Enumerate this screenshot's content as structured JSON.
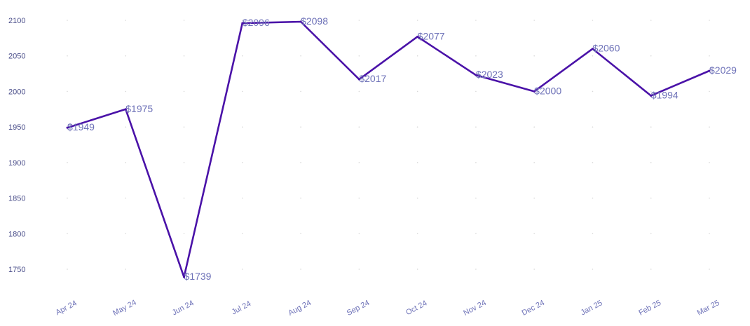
{
  "chart_data": {
    "type": "line",
    "categories": [
      "Apr 24",
      "May 24",
      "Jun 24",
      "Jul 24",
      "Aug 24",
      "Sep 24",
      "Oct 24",
      "Nov 24",
      "Dec 24",
      "Jan 25",
      "Feb 25",
      "Mar 25"
    ],
    "values": [
      1949,
      1975,
      1739,
      2096,
      2098,
      2017,
      2077,
      2023,
      2000,
      2060,
      1994,
      2029
    ],
    "data_labels": [
      "$1949",
      "$1975",
      "$1739",
      "$2096",
      "$2098",
      "$2017",
      "$2077",
      "$2023",
      "$2000",
      "$2060",
      "$1994",
      "$2029"
    ],
    "yticks": [
      1750,
      1800,
      1850,
      1900,
      1950,
      2000,
      2050,
      2100
    ],
    "ylim": [
      1720,
      2115
    ],
    "grid": true,
    "line_color": "#4a12a8"
  }
}
